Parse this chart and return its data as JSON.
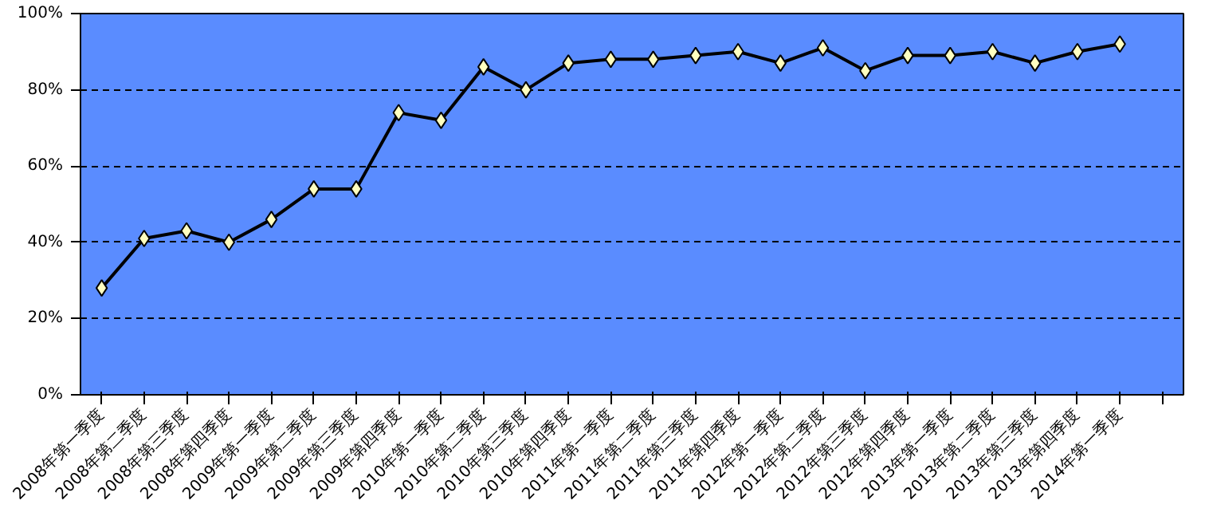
{
  "chart_data": {
    "type": "line",
    "categories": [
      "2008年第一季度",
      "2008年第二季度",
      "2008年第三季度",
      "2008年第四季度",
      "2009年第一季度",
      "2009年第二季度",
      "2009年第三季度",
      "2009年第四季度",
      "2010年第一季度",
      "2010年第二季度",
      "2010年第三季度",
      "2010年第四季度",
      "2011年第一季度",
      "2011年第二季度",
      "2011年第三季度",
      "2011年第四季度",
      "2012年第一季度",
      "2012年第二季度",
      "2012年第三季度",
      "2012年第四季度",
      "2013年第一季度",
      "2013年第二季度",
      "2013年第三季度",
      "2013年第四季度",
      "2014年第一季度",
      null
    ],
    "series": [
      {
        "color": "#000000",
        "values": [
          28,
          41,
          43,
          40,
          46,
          54,
          54,
          74,
          72,
          86,
          80,
          87,
          88,
          88,
          89,
          90,
          87,
          91,
          85,
          89,
          89,
          90,
          87,
          90,
          92,
          null
        ]
      }
    ],
    "ylim": [
      0,
      100
    ],
    "yticks": [
      {
        "value": 0,
        "label": "0%"
      },
      {
        "value": 20,
        "label": "20%"
      },
      {
        "value": 40,
        "label": "40%"
      },
      {
        "value": 60,
        "label": "60%"
      },
      {
        "value": 80,
        "label": "80%"
      },
      {
        "value": 100,
        "label": "100%"
      }
    ],
    "grid": "y",
    "marker": "diamond",
    "line_style": "solid"
  }
}
